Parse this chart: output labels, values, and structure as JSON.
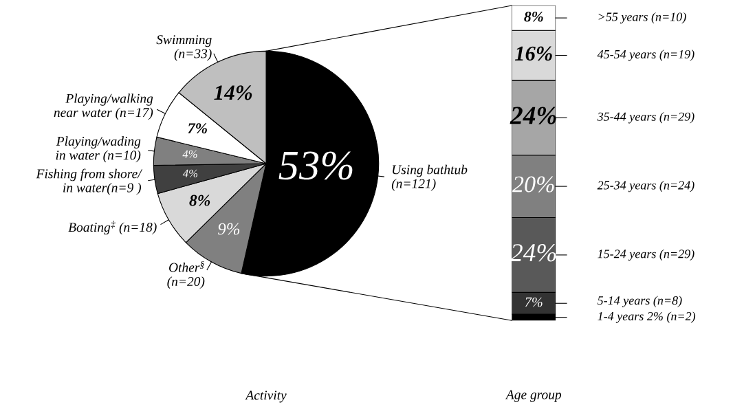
{
  "chart_data": [
    {
      "type": "pie",
      "xlabel": "Activity",
      "categories": [
        "Using bathtub\n(n=121)",
        "Other$^{§}$\n(n=20)",
        "Boating$^{‡}$ (n=18)",
        "Fishing from shore/\nin water(n=9 )",
        "Playing/wading\nin water (n=10)",
        "Playing/walking\nnear water (n=17)",
        "Swimming\n(n=33)"
      ],
      "values": [
        53,
        9,
        8,
        4,
        4,
        7,
        14
      ],
      "value_labels": [
        "53%",
        "9%",
        "8%",
        "4%",
        "4%",
        "7%",
        "14%"
      ],
      "colors": [
        "#000000",
        "#808080",
        "#d9d9d9",
        "#404040",
        "#808080",
        "#ffffff",
        "#bfbfbf"
      ]
    },
    {
      "type": "bar",
      "stacked": true,
      "xlabel": "Age group",
      "categories": [
        null
      ],
      "series": [
        {
          "name": "1-4 years 2% (n=2)",
          "color": "#000000",
          "values": [
            2
          ],
          "value_labels": [
            null
          ]
        },
        {
          "name": "5-14 years (n=8)",
          "color": "#333333",
          "values": [
            7
          ],
          "value_labels": [
            "7%"
          ]
        },
        {
          "name": "15-24 years (n=29)",
          "color": "#595959",
          "values": [
            24
          ],
          "value_labels": [
            "24%"
          ]
        },
        {
          "name": "25-34 years (n=24)",
          "color": "#808080",
          "values": [
            20
          ],
          "value_labels": [
            "20%"
          ]
        },
        {
          "name": "35-44 years (n=29)",
          "color": "#a6a6a6",
          "values": [
            24
          ],
          "value_labels": [
            "24%"
          ]
        },
        {
          "name": "45-54 years (n=19)",
          "color": "#d9d9d9",
          "values": [
            16
          ],
          "value_labels": [
            "16%"
          ]
        },
        {
          "name": ">55 years (n=10)",
          "color": "#ffffff",
          "values": [
            8
          ],
          "value_labels": [
            "8%"
          ]
        }
      ]
    }
  ]
}
